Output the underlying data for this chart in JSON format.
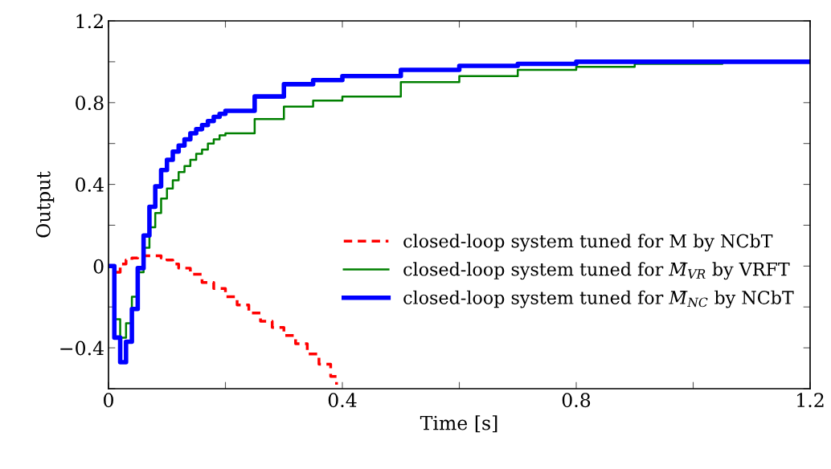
{
  "chart_data": {
    "type": "step",
    "xlabel": "Time [s]",
    "ylabel": "Output",
    "xlim": [
      0,
      1.2
    ],
    "ylim": [
      -0.6,
      1.2
    ],
    "xticks": [
      0,
      {
        "value": 0.2,
        "label": null
      },
      0.4,
      {
        "value": 0.6,
        "label": null
      },
      0.8,
      {
        "value": 1.0,
        "label": null
      },
      1.2
    ],
    "yticks": [
      {
        "value": -0.6,
        "label": null
      },
      {
        "value": -0.4,
        "label": "−0.4"
      },
      {
        "value": -0.2,
        "label": null
      },
      0,
      {
        "value": 0.2,
        "label": null
      },
      0.4,
      {
        "value": 0.6,
        "label": null
      },
      0.8,
      {
        "value": 1.0,
        "label": null
      },
      1.2
    ],
    "grid": false,
    "legend": "right",
    "series": [
      {
        "name": "closed-loop system tuned for M by NCbT",
        "color": "#ff0000",
        "line_style": "dashed",
        "x": [
          0,
          0.01,
          0.02,
          0.03,
          0.04,
          0.05,
          0.06,
          0.07,
          0.08,
          0.09,
          0.1,
          0.11,
          0.12,
          0.14,
          0.16,
          0.18,
          0.2,
          0.22,
          0.24,
          0.26,
          0.28,
          0.3,
          0.32,
          0.34,
          0.36,
          0.38,
          0.39
        ],
        "values": [
          0,
          -0.03,
          0.01,
          0.03,
          0.04,
          0.05,
          0.05,
          0.05,
          0.05,
          0.04,
          0.03,
          0.01,
          -0.01,
          -0.04,
          -0.08,
          -0.11,
          -0.15,
          -0.19,
          -0.23,
          -0.27,
          -0.3,
          -0.34,
          -0.38,
          -0.43,
          -0.48,
          -0.54,
          -0.58
        ]
      },
      {
        "name": "closed-loop system tuned for M̄$_{VR}$ by VRFT",
        "color": "#008000",
        "line_style": "solid",
        "x": [
          0,
          0.01,
          0.02,
          0.03,
          0.04,
          0.05,
          0.06,
          0.07,
          0.08,
          0.09,
          0.1,
          0.11,
          0.12,
          0.13,
          0.14,
          0.15,
          0.16,
          0.17,
          0.18,
          0.19,
          0.2,
          0.25,
          0.3,
          0.35,
          0.4,
          0.5,
          0.6,
          0.7,
          0.8,
          0.9,
          1.05
        ],
        "values": [
          0,
          -0.26,
          -0.35,
          -0.28,
          -0.15,
          -0.03,
          0.09,
          0.19,
          0.26,
          0.33,
          0.38,
          0.42,
          0.46,
          0.49,
          0.52,
          0.55,
          0.57,
          0.6,
          0.62,
          0.64,
          0.65,
          0.72,
          0.78,
          0.81,
          0.83,
          0.9,
          0.93,
          0.96,
          0.975,
          0.99,
          1.0
        ]
      },
      {
        "name": "closed-loop system tuned for M̄$_{NC}$ by NCbT",
        "color": "#0000ff",
        "line_style": "solid",
        "x": [
          0,
          0.01,
          0.02,
          0.03,
          0.04,
          0.05,
          0.06,
          0.07,
          0.08,
          0.09,
          0.1,
          0.11,
          0.12,
          0.13,
          0.14,
          0.15,
          0.16,
          0.17,
          0.18,
          0.19,
          0.2,
          0.25,
          0.3,
          0.35,
          0.4,
          0.5,
          0.6,
          0.7,
          0.8,
          1.2
        ],
        "values": [
          0,
          -0.35,
          -0.47,
          -0.37,
          -0.21,
          -0.01,
          0.15,
          0.29,
          0.39,
          0.47,
          0.52,
          0.56,
          0.59,
          0.62,
          0.65,
          0.67,
          0.69,
          0.71,
          0.73,
          0.745,
          0.76,
          0.83,
          0.89,
          0.91,
          0.93,
          0.96,
          0.98,
          0.99,
          1.0,
          1.0
        ]
      }
    ]
  }
}
